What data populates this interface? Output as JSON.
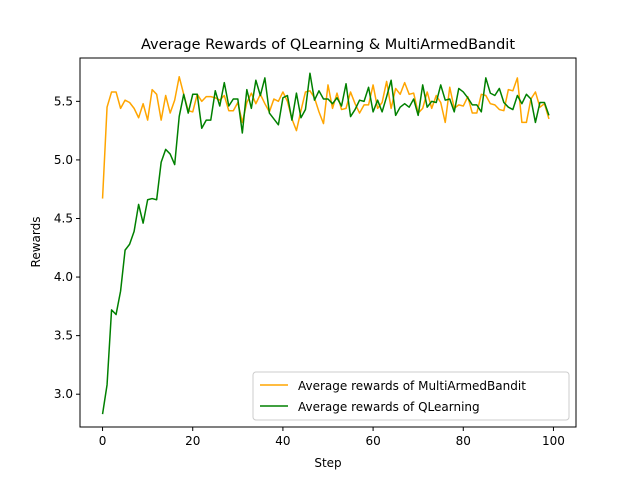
{
  "chart_data": {
    "type": "line",
    "title": "Average Rewards of QLearning & MultiArmedBandit",
    "xlabel": "Step",
    "ylabel": "Rewards",
    "xlim": [
      -5,
      105
    ],
    "ylim": [
      2.72,
      5.87
    ],
    "xticks": [
      0,
      20,
      40,
      60,
      80,
      100
    ],
    "yticks": [
      3.0,
      3.5,
      4.0,
      4.5,
      5.0,
      5.5
    ],
    "grid": false,
    "legend_position": "lower right",
    "x": [
      0,
      1,
      2,
      3,
      4,
      5,
      6,
      7,
      8,
      9,
      10,
      11,
      12,
      13,
      14,
      15,
      16,
      17,
      18,
      19,
      20,
      21,
      22,
      23,
      24,
      25,
      26,
      27,
      28,
      29,
      30,
      31,
      32,
      33,
      34,
      35,
      36,
      37,
      38,
      39,
      40,
      41,
      42,
      43,
      44,
      45,
      46,
      47,
      48,
      49,
      50,
      51,
      52,
      53,
      54,
      55,
      56,
      57,
      58,
      59,
      60,
      61,
      62,
      63,
      64,
      65,
      66,
      67,
      68,
      69,
      70,
      71,
      72,
      73,
      74,
      75,
      76,
      77,
      78,
      79,
      80,
      81,
      82,
      83,
      84,
      85,
      86,
      87,
      88,
      89,
      90,
      91,
      92,
      93,
      94,
      95,
      96,
      97,
      98,
      99
    ],
    "series": [
      {
        "name": "Average rewards of MultiArmedBandit",
        "color": "#ffa500",
        "values": [
          4.67,
          5.45,
          5.58,
          5.58,
          5.44,
          5.51,
          5.49,
          5.44,
          5.36,
          5.48,
          5.34,
          5.6,
          5.56,
          5.34,
          5.55,
          5.4,
          5.51,
          5.71,
          5.56,
          5.42,
          5.41,
          5.56,
          5.5,
          5.54,
          5.54,
          5.53,
          5.51,
          5.55,
          5.42,
          5.42,
          5.49,
          5.32,
          5.49,
          5.57,
          5.48,
          5.56,
          5.48,
          5.41,
          5.52,
          5.5,
          5.58,
          5.5,
          5.35,
          5.25,
          5.42,
          5.58,
          5.59,
          5.53,
          5.41,
          5.31,
          5.64,
          5.44,
          5.57,
          5.43,
          5.44,
          5.58,
          5.48,
          5.4,
          5.47,
          5.47,
          5.64,
          5.44,
          5.49,
          5.67,
          5.44,
          5.61,
          5.56,
          5.66,
          5.56,
          5.57,
          5.4,
          5.44,
          5.58,
          5.44,
          5.55,
          5.49,
          5.32,
          5.62,
          5.44,
          5.47,
          5.46,
          5.54,
          5.4,
          5.4,
          5.56,
          5.55,
          5.48,
          5.47,
          5.43,
          5.42,
          5.6,
          5.59,
          5.7,
          5.32,
          5.32,
          5.52,
          5.58,
          5.45,
          5.48,
          5.35
        ]
      },
      {
        "name": "Average rewards of QLearning",
        "color": "#008000",
        "values": [
          2.83,
          3.08,
          3.72,
          3.68,
          3.88,
          4.23,
          4.28,
          4.39,
          4.62,
          4.46,
          4.66,
          4.67,
          4.66,
          4.98,
          5.09,
          5.05,
          4.96,
          5.37,
          5.56,
          5.4,
          5.56,
          5.56,
          5.27,
          5.34,
          5.34,
          5.59,
          5.46,
          5.66,
          5.46,
          5.52,
          5.52,
          5.23,
          5.6,
          5.44,
          5.68,
          5.55,
          5.7,
          5.4,
          5.35,
          5.3,
          5.53,
          5.55,
          5.34,
          5.57,
          5.36,
          5.43,
          5.74,
          5.51,
          5.59,
          5.52,
          5.52,
          5.48,
          5.53,
          5.46,
          5.65,
          5.37,
          5.43,
          5.51,
          5.5,
          5.62,
          5.41,
          5.51,
          5.41,
          5.54,
          5.68,
          5.38,
          5.45,
          5.48,
          5.45,
          5.52,
          5.38,
          5.64,
          5.45,
          5.5,
          5.49,
          5.64,
          5.51,
          5.52,
          5.41,
          5.61,
          5.58,
          5.53,
          5.47,
          5.47,
          5.41,
          5.7,
          5.57,
          5.55,
          5.61,
          5.49,
          5.45,
          5.43,
          5.55,
          5.48,
          5.56,
          5.52,
          5.32,
          5.49,
          5.49,
          5.38
        ]
      }
    ]
  }
}
